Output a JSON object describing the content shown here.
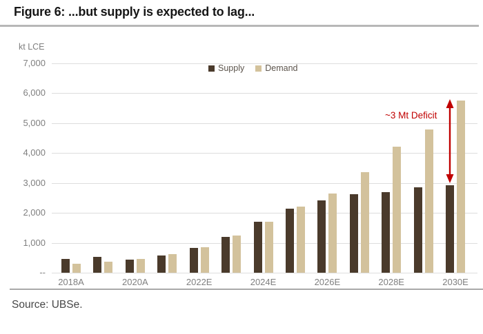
{
  "title": "Figure 6: ...but supply is expected to lag...",
  "source": "Source: UBSe.",
  "axis_unit": "kt LCE",
  "legend": {
    "supply": "Supply",
    "demand": "Demand"
  },
  "annotation": {
    "text": "~3 Mt Deficit"
  },
  "colors": {
    "supply": "#4A3A2B",
    "demand": "#D3C29C",
    "deficit": "#C00000",
    "grid": "#DDDDDD",
    "axis_text": "#7F7F7F"
  },
  "chart_data": {
    "type": "bar",
    "title": "Figure 6: ...but supply is expected to lag...",
    "ylabel": "kt LCE",
    "xlabel": "",
    "ylim": [
      0,
      7000
    ],
    "y_ticks": [
      "7,000",
      "6,000",
      "5,000",
      "4,000",
      "3,000",
      "2,000",
      "1,000",
      "--"
    ],
    "categories": [
      "2018",
      "2019",
      "2020",
      "2021",
      "2022",
      "2023",
      "2024",
      "2025",
      "2026",
      "2027",
      "2028",
      "2029",
      "2030"
    ],
    "x_tick_labels": [
      "2018A",
      "2020A",
      "2022E",
      "2024E",
      "2026E",
      "2028E",
      "2030E"
    ],
    "series": [
      {
        "name": "Supply",
        "values": [
          460,
          520,
          430,
          580,
          830,
          1190,
          1700,
          2150,
          2420,
          2630,
          2700,
          2860,
          2920
        ]
      },
      {
        "name": "Demand",
        "values": [
          300,
          370,
          470,
          620,
          860,
          1240,
          1710,
          2220,
          2650,
          3360,
          4220,
          4800,
          5750
        ]
      }
    ],
    "grid": true,
    "legend_position": "top-center",
    "annotation": "~3 Mt Deficit"
  }
}
